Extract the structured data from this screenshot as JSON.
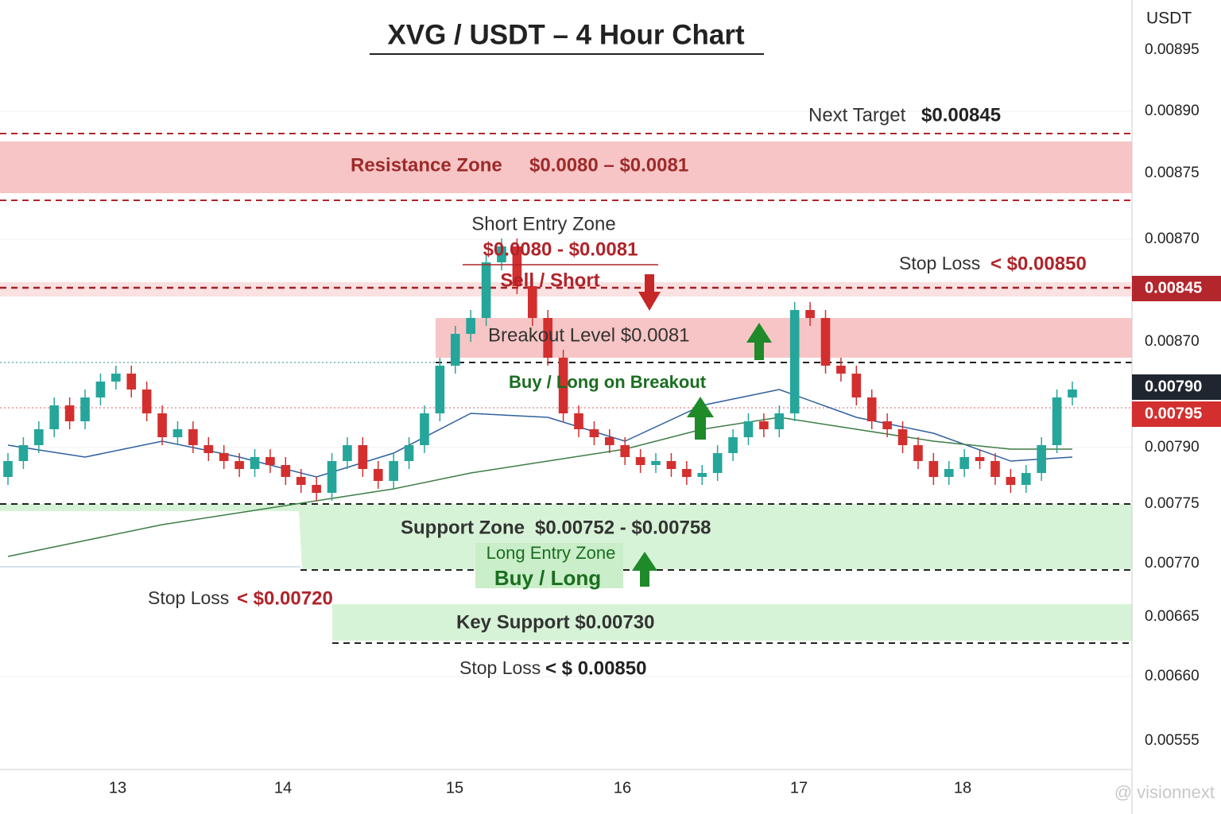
{
  "chart_data": {
    "type": "candlestick",
    "title": "XVG / USDT – 4 Hour Chart",
    "y_unit": "USDT",
    "axis_labels": [
      "0.00895",
      "0.00890",
      "0.00875",
      "0.00870",
      "0.00845",
      "0.00870",
      "0.00790",
      "0.00795",
      "0.00790",
      "0.00775",
      "0.00770",
      "0.00665",
      "0.00660",
      "0.00555"
    ],
    "x_labels": [
      "13",
      "14",
      "15",
      "16",
      "17",
      "18"
    ],
    "ylim": [
      0.007074,
      0.00901
    ],
    "up_color": "#26a69a",
    "down_color": "#d32f2f",
    "open": [
      0.00781,
      0.00785,
      0.00789,
      0.00793,
      0.00799,
      0.00795,
      0.00801,
      0.00805,
      0.00807,
      0.00803,
      0.00797,
      0.00791,
      0.00793,
      0.00789,
      0.00787,
      0.00785,
      0.00783,
      0.00786,
      0.00784,
      0.00781,
      0.00779,
      0.00777,
      0.00785,
      0.00789,
      0.00783,
      0.0078,
      0.00785,
      0.00789,
      0.00797,
      0.00809,
      0.00817,
      0.00821,
      0.00835,
      0.00839,
      0.00829,
      0.00821,
      0.00811,
      0.00797,
      0.00793,
      0.00791,
      0.00789,
      0.00786,
      0.00784,
      0.00785,
      0.00783,
      0.00781,
      0.00782,
      0.00787,
      0.00791,
      0.00795,
      0.00793,
      0.00797,
      0.00823,
      0.00821,
      0.00809,
      0.00807,
      0.00801,
      0.00795,
      0.00793,
      0.00789,
      0.00785,
      0.00781,
      0.00783,
      0.00786,
      0.00785,
      0.00781,
      0.00779,
      0.00782,
      0.00789,
      0.00801
    ],
    "high": [
      0.00787,
      0.00791,
      0.00795,
      0.00801,
      0.00801,
      0.00803,
      0.00807,
      0.00809,
      0.00809,
      0.00805,
      0.00799,
      0.00795,
      0.00795,
      0.00791,
      0.00789,
      0.00787,
      0.00788,
      0.00788,
      0.00786,
      0.00783,
      0.00781,
      0.00787,
      0.00791,
      0.00791,
      0.00785,
      0.00787,
      0.00791,
      0.00799,
      0.00811,
      0.00819,
      0.00823,
      0.00837,
      0.00841,
      0.00841,
      0.00831,
      0.00823,
      0.00813,
      0.00799,
      0.00795,
      0.00793,
      0.00791,
      0.00788,
      0.00787,
      0.00787,
      0.00785,
      0.00784,
      0.00789,
      0.00793,
      0.00797,
      0.00797,
      0.00799,
      0.00825,
      0.00825,
      0.00823,
      0.00811,
      0.00809,
      0.00803,
      0.00797,
      0.00795,
      0.00791,
      0.00787,
      0.00785,
      0.00788,
      0.00788,
      0.00787,
      0.00783,
      0.00784,
      0.00791,
      0.00803,
      0.00805
    ],
    "low": [
      0.00779,
      0.00783,
      0.00787,
      0.00791,
      0.00793,
      0.00793,
      0.00799,
      0.00803,
      0.00801,
      0.00795,
      0.00789,
      0.00789,
      0.00787,
      0.00785,
      0.00783,
      0.00781,
      0.00781,
      0.00782,
      0.00779,
      0.00777,
      0.00775,
      0.00775,
      0.00783,
      0.00781,
      0.00778,
      0.00778,
      0.00783,
      0.00787,
      0.00795,
      0.00807,
      0.00815,
      0.00819,
      0.00833,
      0.00827,
      0.00819,
      0.00809,
      0.00795,
      0.00791,
      0.00789,
      0.00787,
      0.00784,
      0.00782,
      0.00782,
      0.00781,
      0.00779,
      0.00779,
      0.0078,
      0.00785,
      0.00789,
      0.00791,
      0.00791,
      0.00795,
      0.00819,
      0.00807,
      0.00805,
      0.00799,
      0.00793,
      0.00791,
      0.00787,
      0.00783,
      0.00779,
      0.00779,
      0.00781,
      0.00783,
      0.00779,
      0.00777,
      0.00777,
      0.0078,
      0.00787,
      0.00799
    ],
    "close": [
      0.00785,
      0.00789,
      0.00793,
      0.00799,
      0.00795,
      0.00801,
      0.00805,
      0.00807,
      0.00803,
      0.00797,
      0.00791,
      0.00793,
      0.00789,
      0.00787,
      0.00785,
      0.00783,
      0.00786,
      0.00784,
      0.00781,
      0.00779,
      0.00777,
      0.00785,
      0.00789,
      0.00783,
      0.0078,
      0.00785,
      0.00789,
      0.00797,
      0.00809,
      0.00817,
      0.00821,
      0.00835,
      0.00839,
      0.00829,
      0.00821,
      0.00811,
      0.00797,
      0.00793,
      0.00791,
      0.00789,
      0.00786,
      0.00784,
      0.00785,
      0.00783,
      0.00781,
      0.00782,
      0.00787,
      0.00791,
      0.00795,
      0.00793,
      0.00797,
      0.00823,
      0.00821,
      0.00809,
      0.00807,
      0.00801,
      0.00795,
      0.00793,
      0.00789,
      0.00785,
      0.00781,
      0.00783,
      0.00786,
      0.00785,
      0.00781,
      0.00779,
      0.00782,
      0.00789,
      0.00801,
      0.00803
    ],
    "lines": [
      {
        "color": "#2f5f9e",
        "x": [
          0,
          5,
          10,
          15,
          20,
          25,
          30,
          35,
          40,
          45,
          50,
          55,
          60,
          65,
          69
        ],
        "values": [
          0.00789,
          0.00786,
          0.0079,
          0.00786,
          0.00781,
          0.00787,
          0.00797,
          0.00796,
          0.0079,
          0.00799,
          0.00803,
          0.00796,
          0.00792,
          0.00785,
          0.00786
        ]
      },
      {
        "color": "#3d7d45",
        "x": [
          0,
          5,
          10,
          15,
          20,
          25,
          30,
          35,
          40,
          45,
          50,
          55,
          60,
          65,
          69
        ],
        "values": [
          0.00761,
          0.00765,
          0.00769,
          0.00772,
          0.00775,
          0.00778,
          0.00782,
          0.00785,
          0.00788,
          0.00793,
          0.00796,
          0.00793,
          0.0079,
          0.00788,
          0.00788
        ]
      }
    ],
    "annotations": {
      "next_target": "Next Target",
      "next_target_price": "$0.00845",
      "resistance": "Resistance Zone",
      "resistance_price": "$0.0080 – $0.0081",
      "short_entry": "Short Entry Zone",
      "short_entry_price": "$0.0080 - $0.0081",
      "sell": "Sell / Short",
      "stop_top": "Stop Loss",
      "stop_top_price": "< $0.00850",
      "breakout": "Breakout Level $0.0081",
      "buy_breakout": "Buy / Long on Breakout",
      "support": "Support Zone",
      "support_price": "$0.00752 - $0.00758",
      "long_entry": "Long Entry Zone",
      "buy": "Buy / Long",
      "stop_left": "Stop Loss",
      "stop_left_price": "< $0.00720",
      "key_support": "Key Support $0.00730",
      "stop_bottom": "Stop Loss",
      "stop_bottom_price": "< $ 0.00850"
    },
    "watermark": "@ visionnext"
  }
}
